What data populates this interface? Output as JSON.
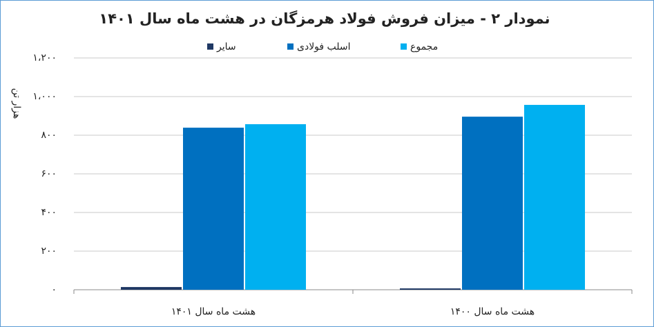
{
  "chart_data": {
    "type": "bar",
    "title": "نمودار ۲ - میزان فروش فولاد هرمزگان در هشت ماه سال ۱۴۰۱",
    "y_label": "هزار تن",
    "categories": [
      "هشت ماه سال ۱۴۰۱",
      "هشت ماه سال ۱۴۰۰"
    ],
    "series": [
      {
        "name": "سایر",
        "color": "#1f3864",
        "values": [
          14,
          7
        ]
      },
      {
        "name": "اسلب فولادی",
        "color": "#0070c0",
        "values": [
          839,
          896
        ]
      },
      {
        "name": "مجموع",
        "color": "#00b0f0",
        "values": [
          857,
          957
        ]
      }
    ],
    "ylim": [
      0,
      1200
    ],
    "yticks": [
      {
        "value": 0,
        "label": "۰"
      },
      {
        "value": 200,
        "label": "۲۰۰"
      },
      {
        "value": 400,
        "label": "۴۰۰"
      },
      {
        "value": 600,
        "label": "۶۰۰"
      },
      {
        "value": 800,
        "label": "۸۰۰"
      },
      {
        "value": 1000,
        "label": "۱،۰۰۰"
      },
      {
        "value": 1200,
        "label": "۱،۲۰۰"
      }
    ],
    "grid": true
  }
}
